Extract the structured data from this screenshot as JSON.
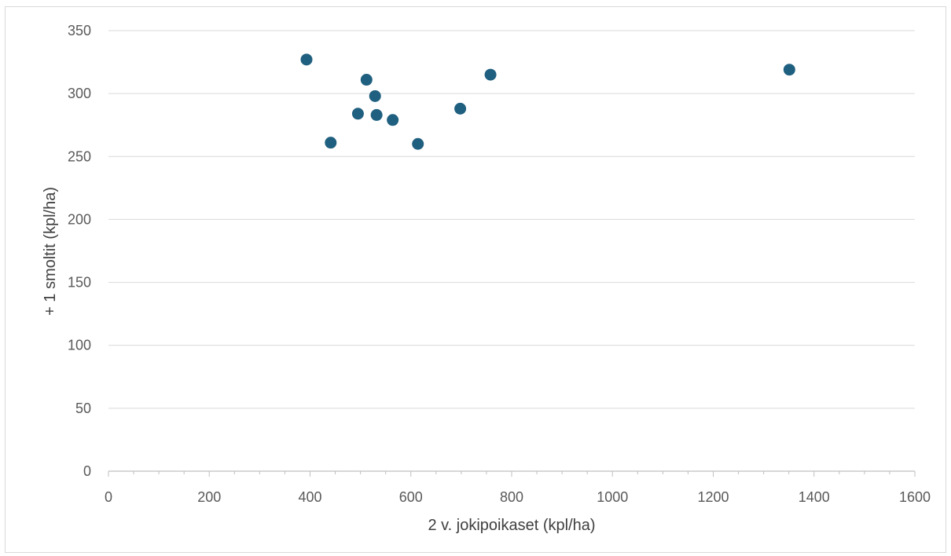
{
  "chart_data": {
    "type": "scatter",
    "title": "",
    "xlabel": "2 v. jokipoikaset (kpl/ha)",
    "ylabel": "+ 1 smoltit (kpl/ha)",
    "xlim": [
      0,
      1600
    ],
    "ylim": [
      0,
      350
    ],
    "x_ticks": [
      "0",
      "200",
      "400",
      "600",
      "800",
      "1000",
      "1200",
      "1400",
      "1600"
    ],
    "y_ticks": [
      "0",
      "50",
      "100",
      "150",
      "200",
      "250",
      "300",
      "350"
    ],
    "grid": {
      "horizontal": true,
      "vertical": false
    },
    "legend": "none",
    "marker_color": "#1f5f7f",
    "series": [
      {
        "points": [
          {
            "x": 393,
            "y": 327
          },
          {
            "x": 441,
            "y": 261
          },
          {
            "x": 495,
            "y": 284
          },
          {
            "x": 512,
            "y": 311
          },
          {
            "x": 529,
            "y": 298
          },
          {
            "x": 532,
            "y": 283
          },
          {
            "x": 564,
            "y": 279
          },
          {
            "x": 614,
            "y": 260
          },
          {
            "x": 698,
            "y": 288
          },
          {
            "x": 758,
            "y": 315
          },
          {
            "x": 1351,
            "y": 319
          }
        ]
      }
    ]
  }
}
